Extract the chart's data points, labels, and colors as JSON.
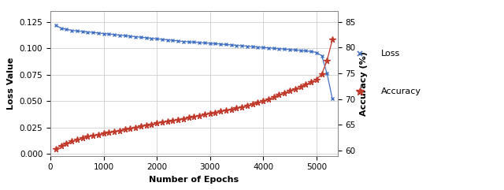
{
  "title": "",
  "xlabel": "Number of Epochs",
  "ylabel_left": "Loss Value",
  "ylabel_right": "Accuracy (%)",
  "loss_color": "#4472C4",
  "accuracy_color": "#C0392B",
  "xlim": [
    0,
    5400
  ],
  "ylim_left": [
    -0.002,
    0.135
  ],
  "ylim_right": [
    59,
    87
  ],
  "xticks": [
    0,
    1000,
    2000,
    3000,
    4000,
    5000
  ],
  "yticks_left": [
    0,
    0.025,
    0.05,
    0.075,
    0.1,
    0.125
  ],
  "yticks_right": [
    60,
    65,
    70,
    75,
    80,
    85
  ],
  "loss_epochs": [
    100,
    200,
    300,
    400,
    500,
    600,
    700,
    800,
    900,
    1000,
    1100,
    1200,
    1300,
    1400,
    1500,
    1600,
    1700,
    1800,
    1900,
    2000,
    2100,
    2200,
    2300,
    2400,
    2500,
    2600,
    2700,
    2800,
    2900,
    3000,
    3100,
    3200,
    3300,
    3400,
    3500,
    3600,
    3700,
    3800,
    3900,
    4000,
    4100,
    4200,
    4300,
    4400,
    4500,
    4600,
    4700,
    4800,
    4900,
    5000,
    5100,
    5200,
    5300
  ],
  "loss_values": [
    0.122,
    0.119,
    0.118,
    0.117,
    0.1165,
    0.116,
    0.1155,
    0.115,
    0.1145,
    0.114,
    0.1135,
    0.113,
    0.1125,
    0.112,
    0.1115,
    0.111,
    0.1105,
    0.11,
    0.1095,
    0.109,
    0.1085,
    0.108,
    0.1075,
    0.107,
    0.1065,
    0.1062,
    0.1058,
    0.1055,
    0.1051,
    0.1048,
    0.1044,
    0.104,
    0.1036,
    0.1032,
    0.1028,
    0.1025,
    0.102,
    0.1016,
    0.1012,
    0.1008,
    0.1004,
    0.1,
    0.0996,
    0.0992,
    0.0988,
    0.0984,
    0.098,
    0.0976,
    0.097,
    0.096,
    0.093,
    0.076,
    0.052
  ],
  "acc_epochs": [
    100,
    200,
    300,
    400,
    500,
    600,
    700,
    800,
    900,
    1000,
    1100,
    1200,
    1300,
    1400,
    1500,
    1600,
    1700,
    1800,
    1900,
    2000,
    2100,
    2200,
    2300,
    2400,
    2500,
    2600,
    2700,
    2800,
    2900,
    3000,
    3100,
    3200,
    3300,
    3400,
    3500,
    3600,
    3700,
    3800,
    3900,
    4000,
    4100,
    4200,
    4300,
    4400,
    4500,
    4600,
    4700,
    4800,
    4900,
    5000,
    5100,
    5200,
    5300
  ],
  "acc_values": [
    60.3,
    61.0,
    61.4,
    61.8,
    62.1,
    62.4,
    62.7,
    62.9,
    63.1,
    63.3,
    63.5,
    63.7,
    63.9,
    64.1,
    64.3,
    64.5,
    64.7,
    64.9,
    65.1,
    65.3,
    65.5,
    65.7,
    65.85,
    66.0,
    66.2,
    66.4,
    66.6,
    66.8,
    67.0,
    67.2,
    67.4,
    67.6,
    67.8,
    68.0,
    68.2,
    68.4,
    68.7,
    69.0,
    69.3,
    69.6,
    70.0,
    70.4,
    70.8,
    71.2,
    71.6,
    72.0,
    72.4,
    72.8,
    73.3,
    73.8,
    74.8,
    77.5,
    81.5
  ],
  "background_color": "#ffffff",
  "grid_color": "#d0d0d0",
  "legend_x_label": "x  Loss",
  "legend_star_label": "★  Accuracy"
}
